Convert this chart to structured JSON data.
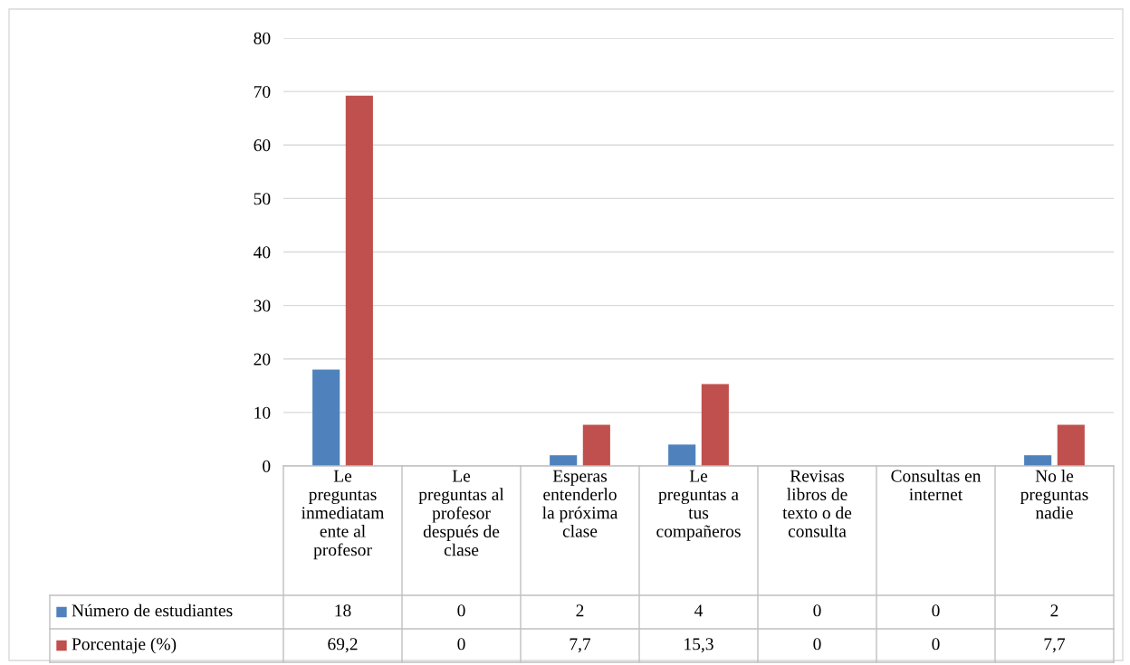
{
  "chart_data": {
    "type": "bar",
    "categories": [
      "Le\npreguntas\ninmediatam\nente al\nprofesor",
      "Le\npreguntas al\nprofesor\ndespués de\nclase",
      "Esperas\nentenderlo\nla próxima\nclase",
      "Le\npreguntas a\ntus\ncompañeros",
      "Revisas\nlibros de\ntexto o de\nconsulta",
      "Consultas en\ninternet",
      "No le\npreguntas\nnadie"
    ],
    "series": [
      {
        "name": "Número de estudiantes",
        "color": "#4f81bd",
        "values": [
          18,
          0,
          2,
          4,
          0,
          0,
          2
        ],
        "value_labels": [
          "18",
          "0",
          "2",
          "4",
          "0",
          "0",
          "2"
        ]
      },
      {
        "name": "Porcentaje (%)",
        "color": "#c0504d",
        "values": [
          69.2,
          0,
          7.7,
          15.3,
          0,
          0,
          7.7
        ],
        "value_labels": [
          "69,2",
          "0",
          "7,7",
          "15,3",
          "0",
          "0",
          "7,7"
        ]
      }
    ],
    "ylim": [
      0,
      80
    ],
    "yticks": [
      0,
      10,
      20,
      30,
      40,
      50,
      60,
      70,
      80
    ],
    "grid": "y",
    "legend": "bottom",
    "data_labels": true
  }
}
